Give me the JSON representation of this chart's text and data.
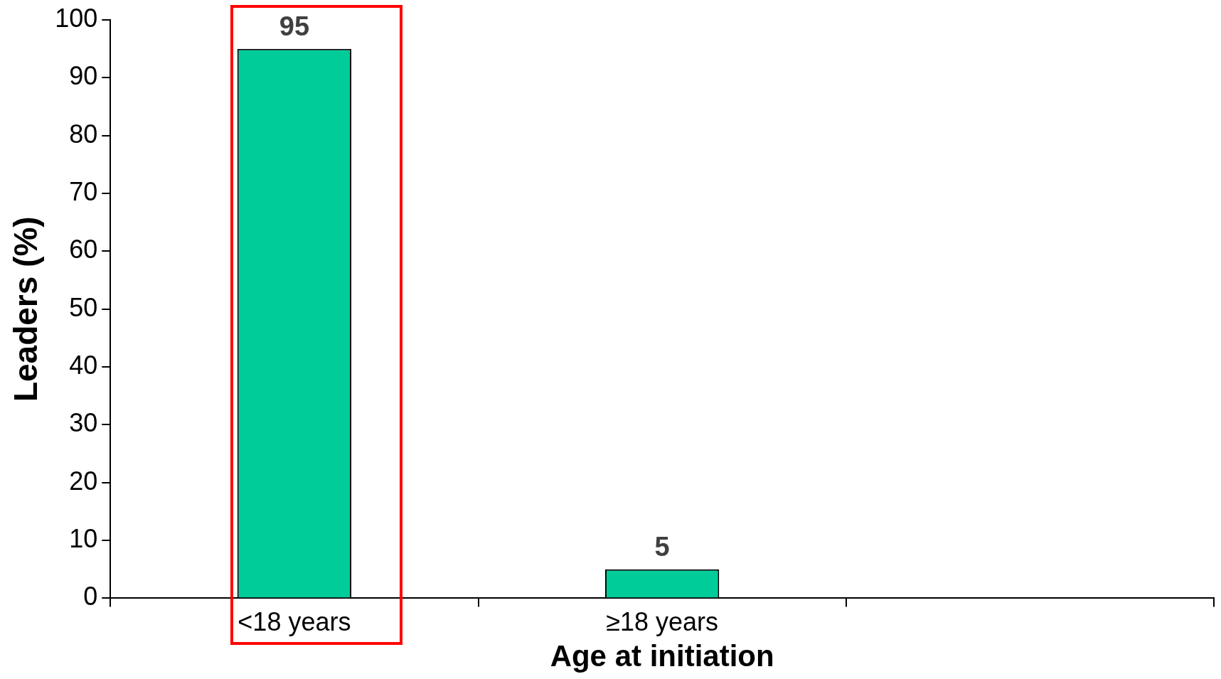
{
  "chart_data": {
    "type": "bar",
    "xlabel": "Age at initiation",
    "ylabel": "Leaders (%)",
    "categories": [
      "<18 years",
      "≥18 years",
      null
    ],
    "values": [
      95,
      5,
      null
    ],
    "color": "#00cc99",
    "ylim": [
      0,
      100
    ],
    "yticks": [
      0,
      10,
      20,
      30,
      40,
      50,
      60,
      70,
      80,
      90,
      100
    ],
    "grid": false,
    "legend": false,
    "data_labels": true
  }
}
